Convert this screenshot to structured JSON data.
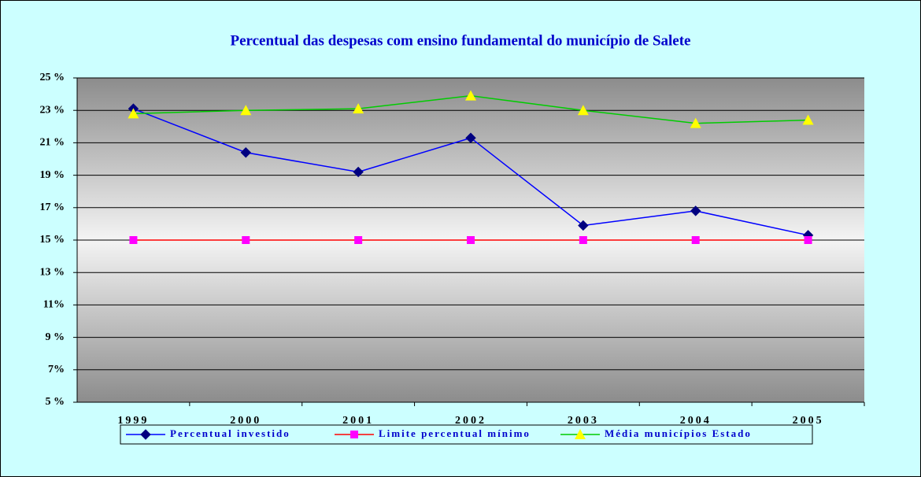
{
  "chart_data": {
    "type": "line",
    "title": "Percentual das despesas com ensino fundamental do município de  Salete",
    "categories": [
      "1999",
      "2000",
      "2001",
      "2002",
      "2003",
      "2004",
      "2005"
    ],
    "series": [
      {
        "name": "Percentual investido",
        "color": "#0000ff",
        "marker_color": "#000080",
        "marker": "diamond",
        "values": [
          23.1,
          20.4,
          19.2,
          21.3,
          15.9,
          16.8,
          15.3
        ]
      },
      {
        "name": "Limite percentual mínimo",
        "color": "#ff0000",
        "marker_color": "#ff00ff",
        "marker": "square",
        "values": [
          15,
          15,
          15,
          15,
          15,
          15,
          15
        ]
      },
      {
        "name": "Média municípios Estado",
        "color": "#00cc00",
        "marker_color": "#ffff00",
        "marker": "triangle",
        "values": [
          22.8,
          23.0,
          23.1,
          23.9,
          23.0,
          22.2,
          22.4
        ]
      }
    ],
    "ylim": [
      5,
      25
    ],
    "yticks": [
      {
        "value": 5,
        "label": "5 %"
      },
      {
        "value": 7,
        "label": "7%"
      },
      {
        "value": 9,
        "label": "9 %"
      },
      {
        "value": 11,
        "label": "11%"
      },
      {
        "value": 13,
        "label": "13 %"
      },
      {
        "value": 15,
        "label": "15 %"
      },
      {
        "value": 17,
        "label": "17 %"
      },
      {
        "value": 19,
        "label": "19 %"
      },
      {
        "value": 21,
        "label": "21 %"
      },
      {
        "value": 23,
        "label": "23 %"
      },
      {
        "value": 25,
        "label": "25 %"
      }
    ],
    "grid": true,
    "legend": "bottom"
  }
}
